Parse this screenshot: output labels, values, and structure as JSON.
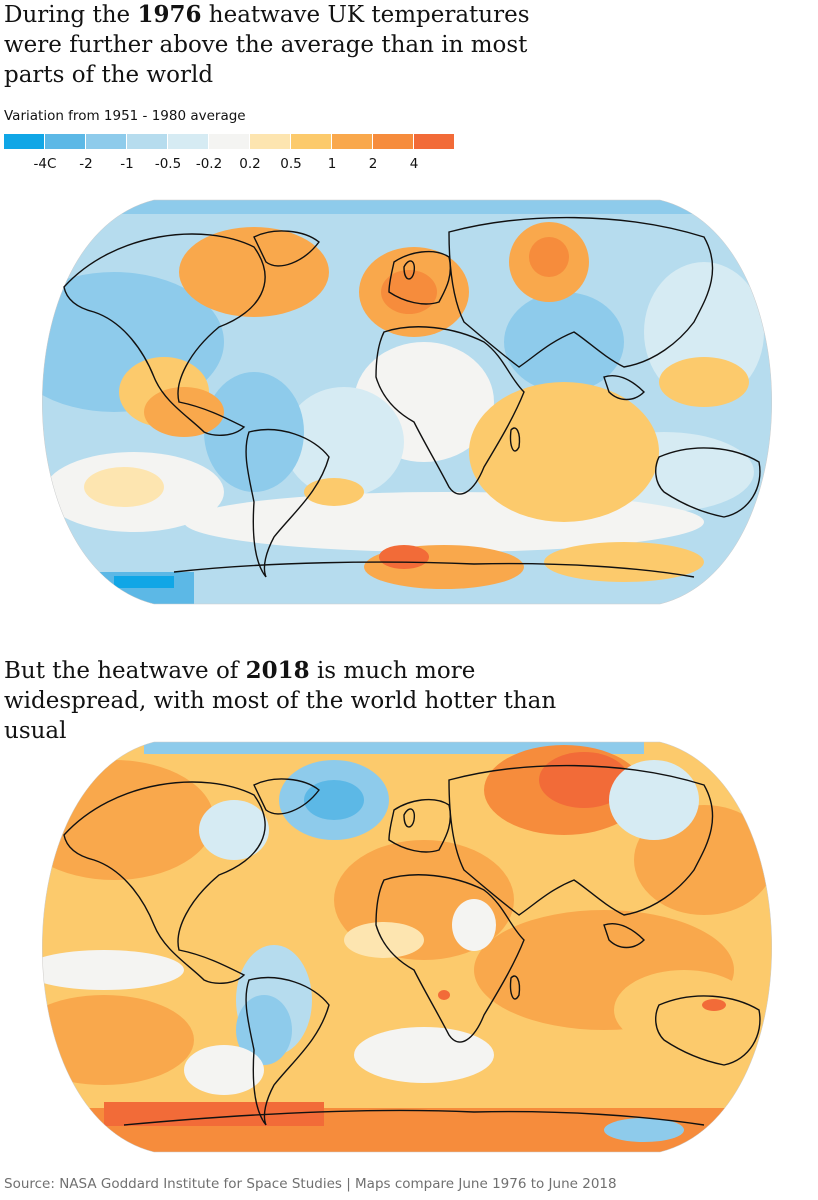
{
  "headline1": {
    "pre": "During the ",
    "year": "1976",
    "post": " heatwave UK temperatures were further above the average than in most parts of the world"
  },
  "legend": {
    "title": "Variation from 1951 - 1980 average",
    "colors": [
      "#10a6e6",
      "#5cb8e6",
      "#8ecbeb",
      "#b6dcee",
      "#d6ebf3",
      "#f4f4f2",
      "#fde5b0",
      "#fcca6c",
      "#f9a84c",
      "#f68c3c",
      "#f26b38"
    ],
    "ticks": [
      "-4C",
      "-2",
      "-1",
      "-0.5",
      "-0.2",
      "0.2",
      "0.5",
      "1",
      "2",
      "4"
    ]
  },
  "maps": [
    {
      "name": "1976",
      "dominant": "cool"
    },
    {
      "name": "2018",
      "dominant": "warm"
    }
  ],
  "headline2": {
    "pre": "But the heatwave of ",
    "year": "2018",
    "post": " is much more widespread, with most of the world hotter than usual"
  },
  "source": "Source: NASA Goddard Institute for Space Studies | Maps compare June 1976 to June 2018"
}
